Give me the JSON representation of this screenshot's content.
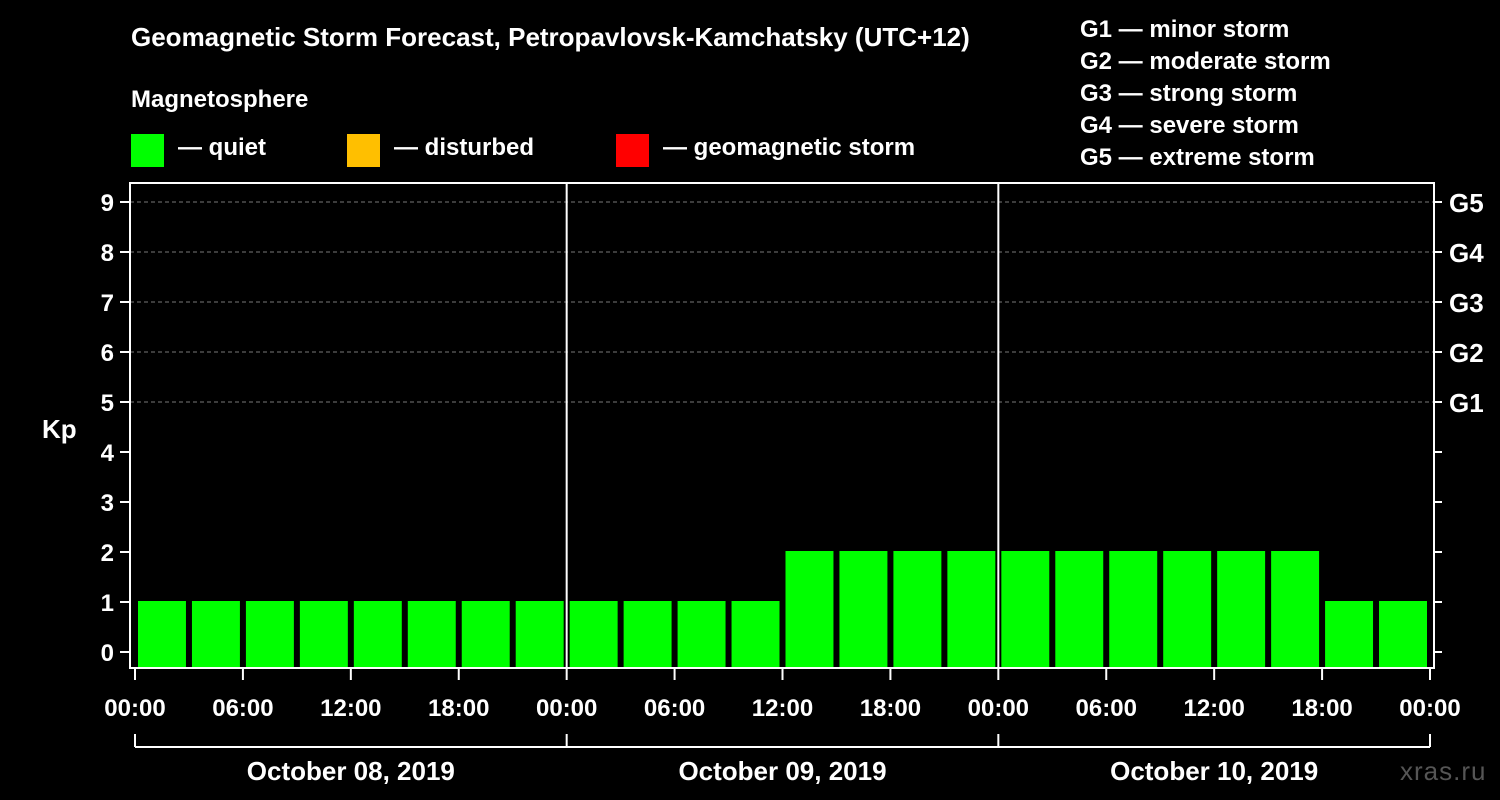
{
  "chart_data": {
    "type": "bar",
    "title": "Geomagnetic Storm Forecast, Petropavlovsk-Kamchatsky (UTC+12)",
    "ylabel": "Kp",
    "ylim": [
      0,
      9
    ],
    "yticks": [
      "0",
      "1",
      "2",
      "3",
      "4",
      "5",
      "6",
      "7",
      "8",
      "9"
    ],
    "right_ticks": [
      {
        "kp": 5,
        "label": "G1"
      },
      {
        "kp": 6,
        "label": "G2"
      },
      {
        "kp": 7,
        "label": "G3"
      },
      {
        "kp": 8,
        "label": "G4"
      },
      {
        "kp": 9,
        "label": "G5"
      }
    ],
    "x_tick_labels": [
      "00:00",
      "06:00",
      "12:00",
      "18:00",
      "00:00",
      "06:00",
      "12:00",
      "18:00",
      "00:00",
      "06:00",
      "12:00",
      "18:00",
      "00:00"
    ],
    "days": [
      "October 08, 2019",
      "October 09, 2019",
      "October 10, 2019"
    ],
    "interval_hours": 3,
    "values": [
      1,
      1,
      1,
      1,
      1,
      1,
      1,
      1,
      1,
      1,
      1,
      1,
      2,
      2,
      2,
      2,
      2,
      2,
      2,
      2,
      2,
      2,
      1,
      1
    ],
    "bar_color": "#00ff00",
    "legend": {
      "heading": "Magnetosphere",
      "items": [
        {
          "label": "— quiet",
          "color": "#00ff00"
        },
        {
          "label": "— disturbed",
          "color": "#ffbf00"
        },
        {
          "label": "— geomagnetic storm",
          "color": "#ff0000"
        }
      ]
    },
    "storm_levels": [
      "G1 — minor storm",
      "G2 — moderate storm",
      "G3 — strong storm",
      "G4 — severe storm",
      "G5 — extreme storm"
    ],
    "watermark": "xras.ru"
  }
}
